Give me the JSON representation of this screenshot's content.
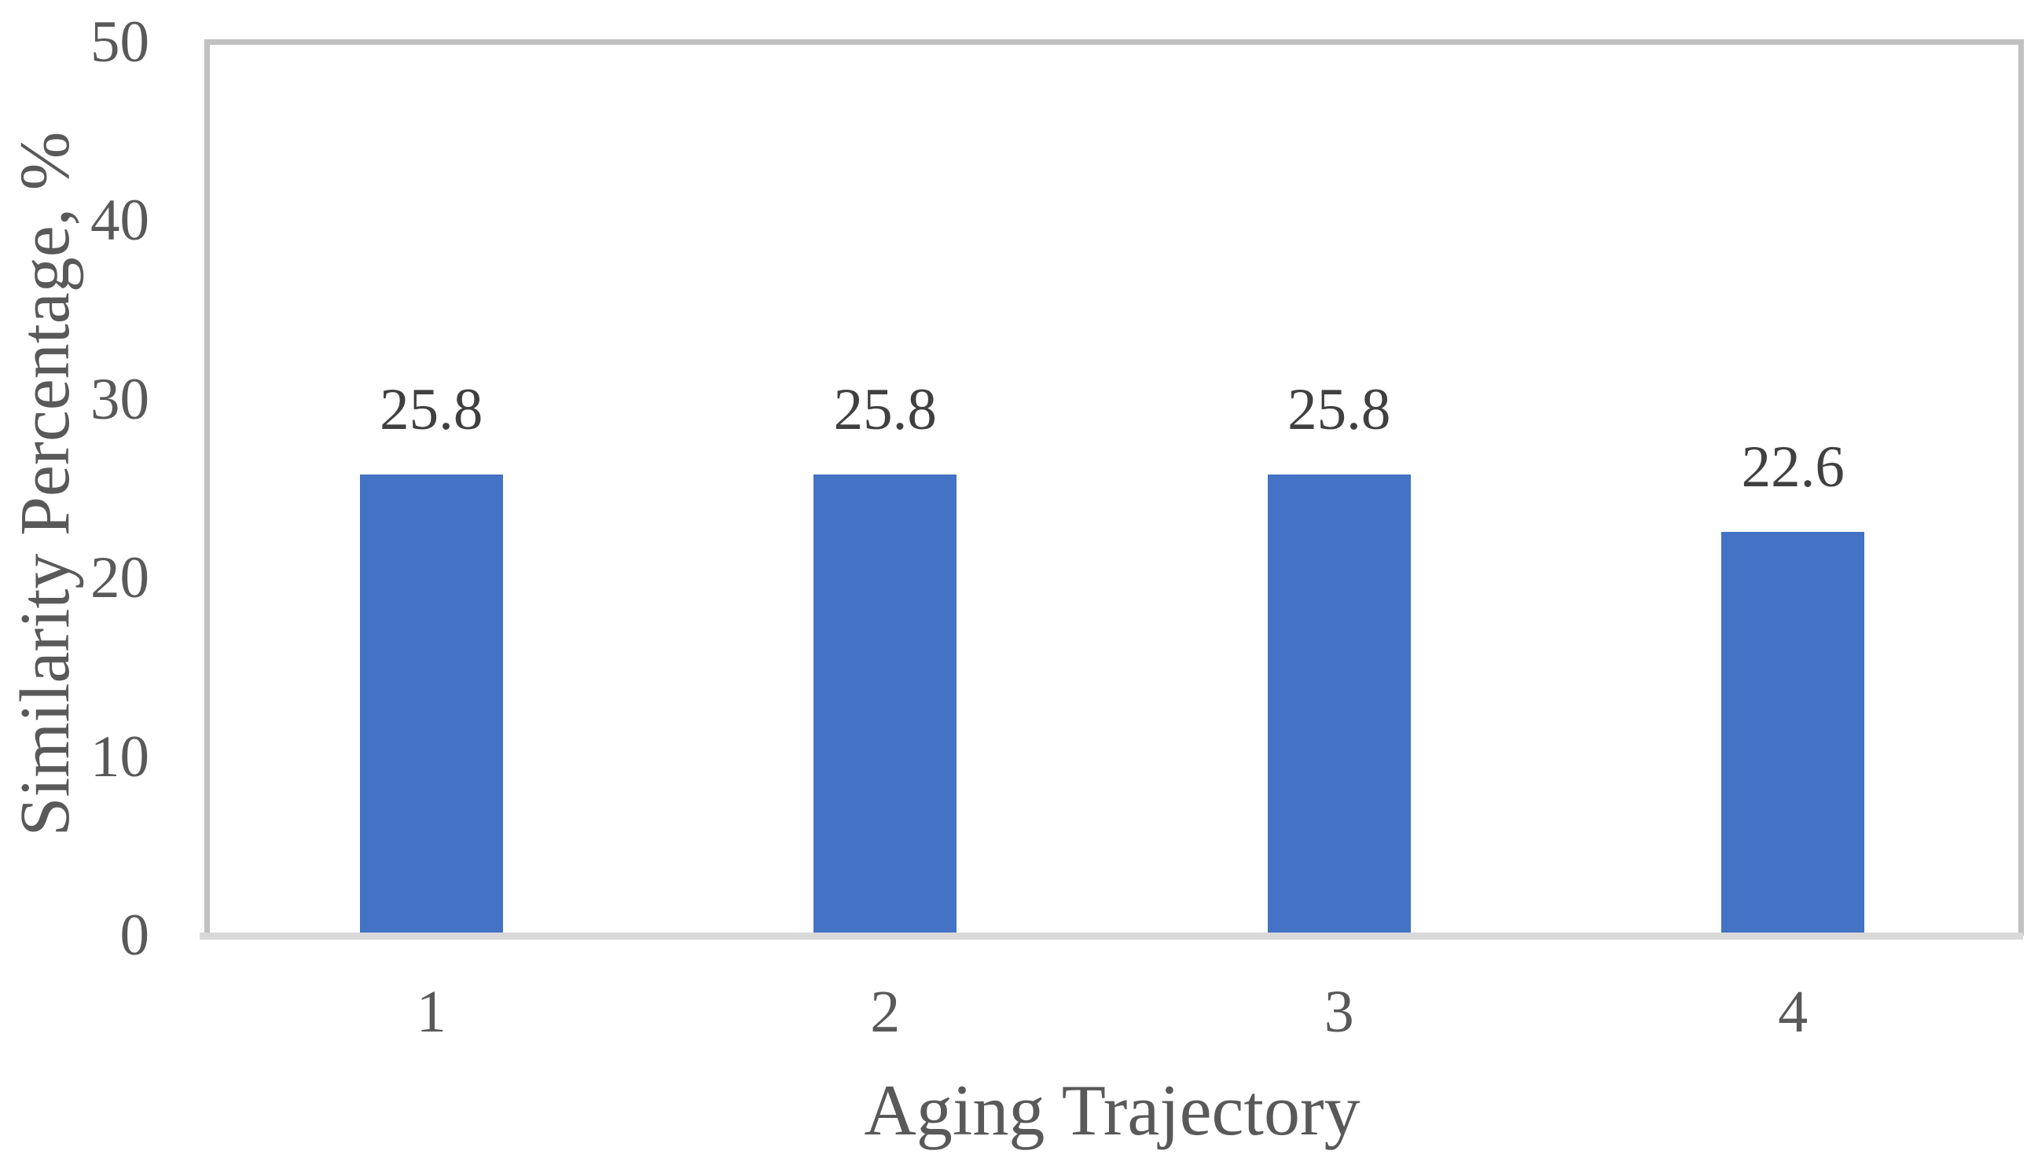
{
  "chart_data": {
    "type": "bar",
    "title": "",
    "categories": [
      "1",
      "2",
      "3",
      "4"
    ],
    "values": [
      25.8,
      25.8,
      25.8,
      22.6
    ],
    "data_labels": [
      "25.8",
      "25.8",
      "25.8",
      "22.6"
    ],
    "xlabel": "Aging Trajectory",
    "ylabel": "Similarity Percentage, %",
    "ylim": [
      0,
      50
    ],
    "yticks": [
      0,
      10,
      20,
      30,
      40,
      50
    ],
    "grid": "off",
    "legend": "none",
    "bar_color": "#4472C4"
  },
  "colors": {
    "background": "#FFFFFF",
    "bar": "#4472C4",
    "plot_border": "#C1C1C1",
    "axis_line": "#D9D9D9",
    "tick_text": "#595959",
    "axis_title_text": "#595959",
    "data_label_text": "#404040"
  }
}
